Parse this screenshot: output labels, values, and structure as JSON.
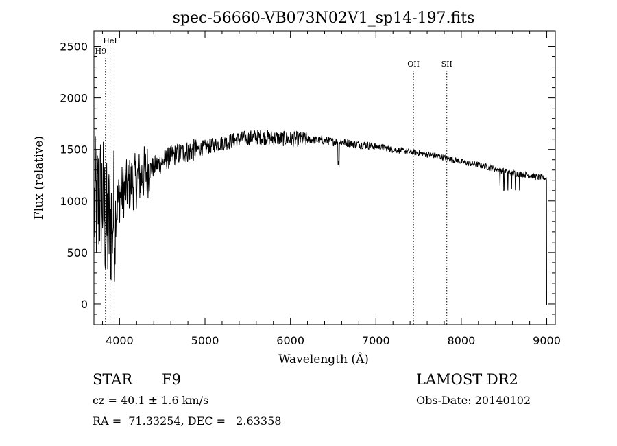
{
  "chart_data": {
    "type": "line",
    "title": "spec-56660-VB073N02V1_sp14-197.fits",
    "xlabel": "Wavelength (Å)",
    "ylabel": "Flux (relative)",
    "xlim": [
      3700,
      9100
    ],
    "ylim": [
      -200,
      2650
    ],
    "xticks": [
      4000,
      5000,
      6000,
      7000,
      8000,
      9000
    ],
    "yticks": [
      0,
      500,
      1000,
      1500,
      2000,
      2500
    ],
    "x_tick_labels": [
      "4000",
      "5000",
      "6000",
      "7000",
      "8000",
      "9000"
    ],
    "y_tick_labels": [
      "0",
      "500",
      "1000",
      "1500",
      "2000",
      "2500"
    ],
    "grid": false,
    "line_color": "#000000",
    "line_markers": [
      {
        "label": "HeI",
        "x": 3889
      },
      {
        "label": "H9",
        "x": 3835
      },
      {
        "label": "OII",
        "x": 7440
      },
      {
        "label": "SII",
        "x": 7830
      }
    ],
    "series": [
      {
        "x": [
          3700,
          3750,
          3800,
          3850,
          3900,
          3950,
          4000,
          4100,
          4200,
          4300,
          4400,
          4500,
          4600,
          4700,
          4800,
          4900,
          5000,
          5100,
          5200,
          5300,
          5400,
          5500,
          5600,
          5700,
          5800,
          5900,
          6000,
          6100,
          6200,
          6300,
          6400,
          6500,
          6600,
          6700,
          6800,
          6900,
          7000,
          7100,
          7200,
          7300,
          7400,
          7500,
          7600,
          7700,
          7800,
          7900,
          8000,
          8100,
          8200,
          8300,
          8400,
          8500,
          8600,
          8700,
          8800,
          8900,
          9000
        ],
        "y": [
          900,
          1000,
          1050,
          700,
          800,
          900,
          1050,
          1150,
          1200,
          1280,
          1330,
          1380,
          1430,
          1460,
          1480,
          1500,
          1520,
          1540,
          1560,
          1580,
          1600,
          1610,
          1620,
          1615,
          1610,
          1605,
          1600,
          1600,
          1595,
          1590,
          1585,
          1575,
          1570,
          1560,
          1550,
          1540,
          1530,
          1515,
          1500,
          1490,
          1475,
          1465,
          1450,
          1440,
          1420,
          1400,
          1380,
          1365,
          1350,
          1330,
          1310,
          1290,
          1270,
          1260,
          1250,
          1230,
          1220
        ]
      }
    ]
  },
  "info": {
    "object_class": "STAR",
    "subclass": "F9",
    "survey": "LAMOST DR2",
    "redshift": "cz = 40.1 ± 1.6 km/s",
    "obs_date": "Obs-Date: 20140102",
    "coords": "RA =  71.33254, DEC =   2.63358"
  }
}
